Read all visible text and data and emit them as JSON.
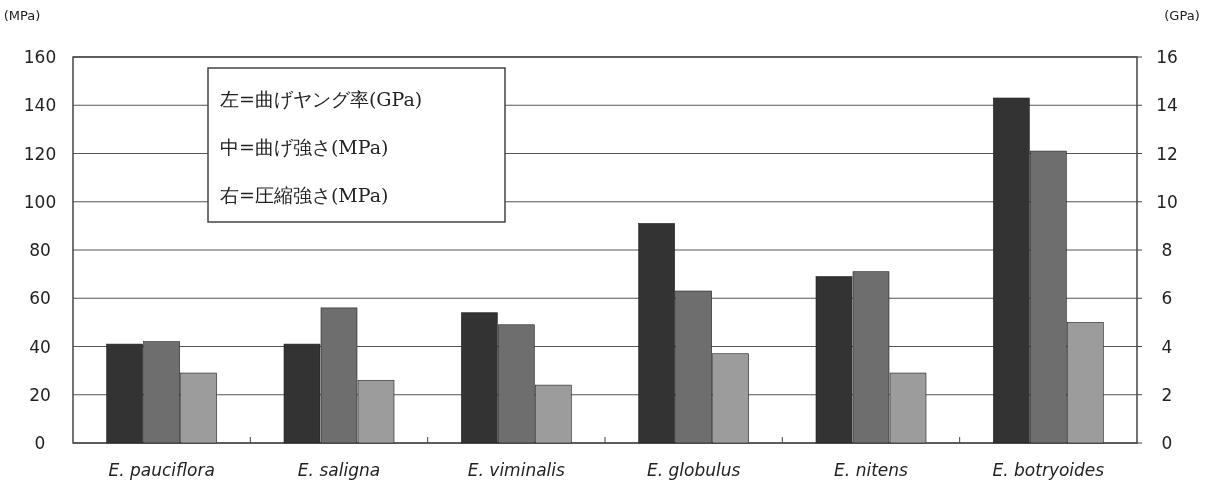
{
  "chart_data": {
    "type": "bar",
    "ylabel": "(MPa)",
    "y2label": "(GPa)",
    "categories": [
      "E. pauciflora",
      "E. saligna",
      "E. viminalis",
      "E. globulus",
      "E. nitens",
      "E. botryoides"
    ],
    "series": [
      {
        "color": "#333333",
        "axis": "y2",
        "values": [
          4.1,
          4.1,
          5.4,
          9.1,
          6.9,
          14.3
        ]
      },
      {
        "color": "#6e6e6e",
        "values": [
          42,
          56,
          49,
          63,
          71,
          121
        ]
      },
      {
        "color": "#9c9c9c",
        "values": [
          29,
          26,
          24,
          37,
          29,
          50
        ]
      }
    ],
    "ylim": [
      0,
      160
    ],
    "yticks": [
      0,
      20,
      40,
      60,
      80,
      100,
      120,
      140,
      160
    ],
    "y2lim": [
      0,
      16
    ],
    "y2ticks": [
      0,
      2,
      4,
      6,
      8,
      10,
      12,
      14,
      16
    ],
    "grid": "y",
    "annotations": [
      "左=曲げヤング率(GPa)",
      "中=曲げ強さ(MPa)",
      "右=圧縮強さ(MPa)"
    ]
  }
}
